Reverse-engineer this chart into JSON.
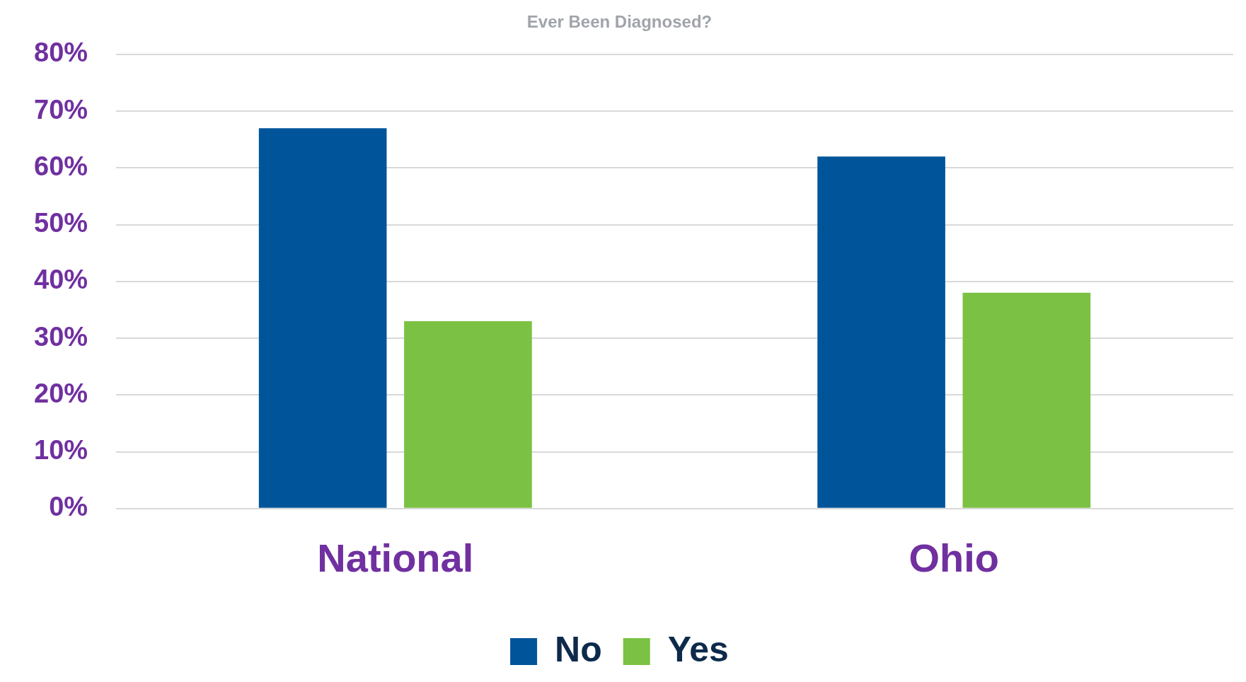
{
  "chart_data": {
    "type": "bar",
    "title": "Ever Been Diagnosed?",
    "categories": [
      "National",
      "Ohio"
    ],
    "series": [
      {
        "name": "No",
        "color": "#00559a",
        "values": [
          67,
          62
        ]
      },
      {
        "name": "Yes",
        "color": "#7bc143",
        "values": [
          33,
          38
        ]
      }
    ],
    "ylim": [
      0,
      80
    ],
    "yticks": [
      {
        "value": 0,
        "label": "0%"
      },
      {
        "value": 10,
        "label": "10%"
      },
      {
        "value": 20,
        "label": "20%"
      },
      {
        "value": 30,
        "label": "30%"
      },
      {
        "value": 40,
        "label": "40%"
      },
      {
        "value": 50,
        "label": "50%"
      },
      {
        "value": 60,
        "label": "60%"
      },
      {
        "value": 70,
        "label": "70%"
      },
      {
        "value": 80,
        "label": "80%"
      }
    ],
    "grid": "y",
    "legend": "bottom"
  }
}
